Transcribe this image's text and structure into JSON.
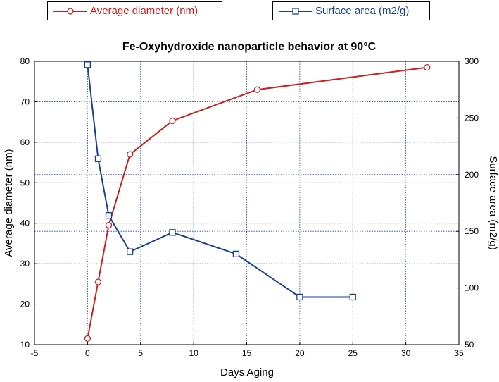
{
  "chart_data": {
    "type": "line",
    "title": "Fe-Oxyhydroxide nanoparticle behavior at 90°C",
    "xlabel": "Days Aging",
    "ylabel_left": "Average diameter (nm)",
    "ylabel_right": "Surface area (m2/g)",
    "xlim": [
      -5,
      35
    ],
    "ylim_left": [
      10,
      80
    ],
    "ylim_right": [
      50,
      300
    ],
    "xticks": [
      "-5",
      "0",
      "5",
      "10",
      "15",
      "20",
      "25",
      "30",
      "35"
    ],
    "yticks_left": [
      "10",
      "20",
      "30",
      "40",
      "50",
      "60",
      "70",
      "80"
    ],
    "yticks_right": [
      "50",
      "100",
      "150",
      "200",
      "250",
      "300"
    ],
    "grid": true,
    "legend_position": "top",
    "series": [
      {
        "name": "Average diameter (nm)",
        "axis": "left",
        "color": "#cc2020",
        "marker": "circle",
        "x": [
          0,
          1,
          2,
          4,
          8,
          16,
          32
        ],
        "y": [
          11.5,
          25.5,
          39.5,
          57,
          65.3,
          73,
          78.5
        ]
      },
      {
        "name": "Surface area (m2/g)",
        "axis": "right",
        "color": "#1a3f99",
        "marker": "square",
        "x": [
          0,
          1,
          2,
          4,
          8,
          14,
          20,
          25
        ],
        "y": [
          297,
          214,
          164,
          132,
          149,
          130,
          92,
          92
        ]
      }
    ]
  }
}
